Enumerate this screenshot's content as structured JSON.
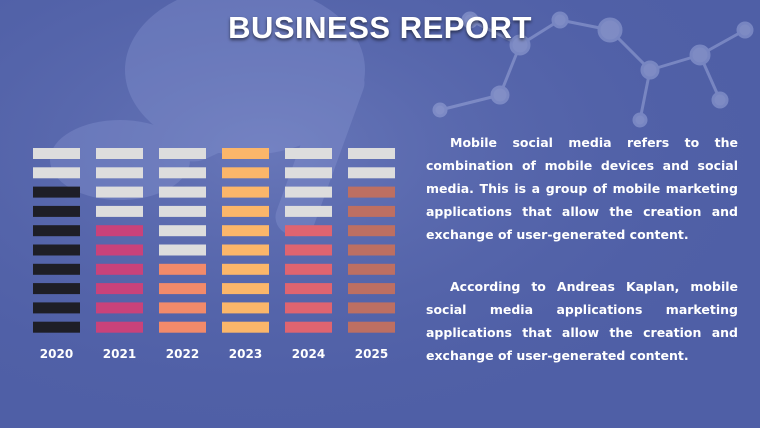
{
  "title": "BUSINESS REPORT",
  "colors": {
    "background": "#4f5fa6",
    "empty": "#dddddd",
    "2020": "#1e1e26",
    "2021": "#c9427a",
    "2022": "#f28a6a",
    "2023": "#fbb66a",
    "2024": "#df6470",
    "2025": "#bd6f62"
  },
  "chart_data": {
    "type": "bar",
    "categories": [
      "2020",
      "2021",
      "2022",
      "2023",
      "2024",
      "2025"
    ],
    "values": [
      8,
      6,
      4,
      10,
      6,
      8
    ],
    "max_segments": 10,
    "title": "",
    "xlabel": "",
    "ylabel": ""
  },
  "paragraphs": [
    "Mobile social media refers to the combination of mobile devices and social media. This is a group of mobile marketing applications that allow the creation and exchange of user-generated content.",
    "According to Andreas Kaplan, mobile social media applications marketing applications that allow the creation and exchange of user-generated content."
  ]
}
